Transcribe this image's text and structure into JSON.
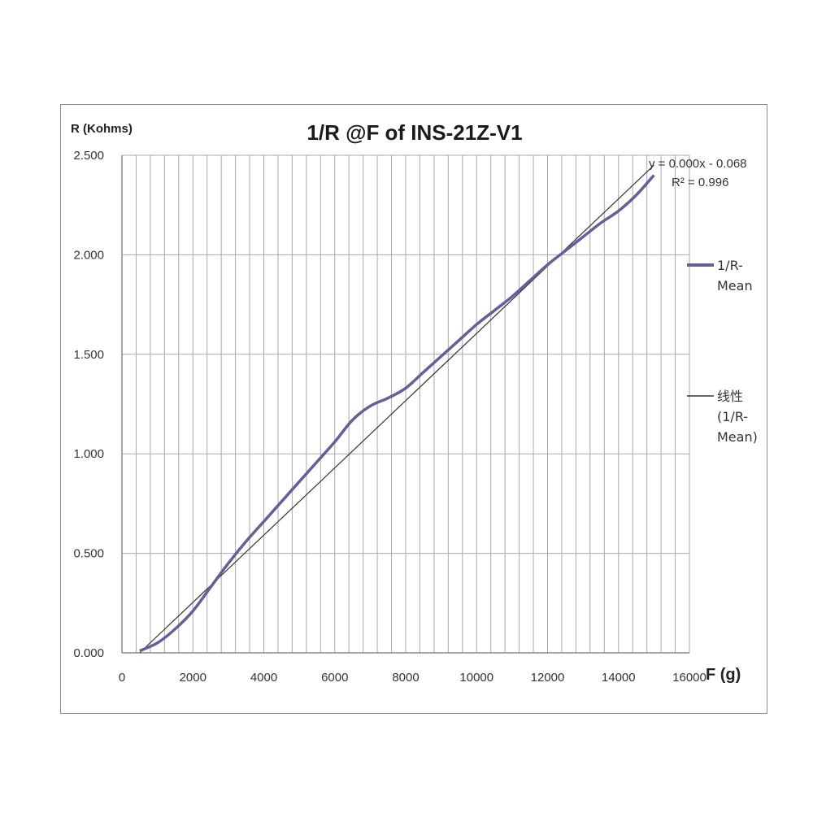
{
  "chart_data": {
    "type": "line",
    "title": "1/R @F of INS-21Z-V1",
    "ylabel": "R (Kohms)",
    "xlabel": "F (g)",
    "xlim": [
      0,
      16000
    ],
    "ylim": [
      0,
      2.5
    ],
    "x_ticks": [
      0,
      2000,
      4000,
      6000,
      8000,
      10000,
      12000,
      14000,
      16000
    ],
    "x_tick_labels": [
      "0",
      "2000",
      "4000",
      "6000",
      "8000",
      "10000",
      "12000",
      "14000",
      "16000"
    ],
    "y_ticks": [
      0,
      0.5,
      1.0,
      1.5,
      2.0,
      2.5
    ],
    "y_tick_labels": [
      "0.000",
      "0.500",
      "1.000",
      "1.500",
      "2.000",
      "2.500"
    ],
    "grid": {
      "vertical_step": 400,
      "horizontal_step": 0.5
    },
    "legend_position": "right",
    "series": [
      {
        "name": "1/R-Mean",
        "color": "#6b5b9a",
        "x": [
          500,
          1000,
          1500,
          2000,
          2500,
          3000,
          3500,
          4000,
          4500,
          5000,
          5500,
          6000,
          6500,
          7000,
          7500,
          8000,
          8500,
          9000,
          9500,
          10000,
          10500,
          11000,
          11500,
          12000,
          12500,
          13000,
          13500,
          14000,
          14500,
          15000
        ],
        "y": [
          0.01,
          0.05,
          0.12,
          0.21,
          0.33,
          0.45,
          0.56,
          0.66,
          0.76,
          0.86,
          0.96,
          1.06,
          1.17,
          1.24,
          1.28,
          1.33,
          1.41,
          1.49,
          1.57,
          1.65,
          1.72,
          1.79,
          1.87,
          1.95,
          2.02,
          2.09,
          2.16,
          2.22,
          2.3,
          2.4
        ]
      }
    ],
    "trendline": {
      "name_lines": [
        "线性",
        "(1/R-",
        "Mean)"
      ],
      "color": "#333333",
      "x": [
        500,
        15000
      ],
      "y": [
        0.0,
        2.45
      ],
      "equation": "y = 0.000x - 0.068",
      "r2": "R² = 0.996"
    },
    "legend": [
      {
        "lines": [
          "1/R-",
          "Mean"
        ]
      },
      {
        "lines": [
          "线性",
          "(1/R-",
          "Mean)"
        ]
      }
    ]
  }
}
